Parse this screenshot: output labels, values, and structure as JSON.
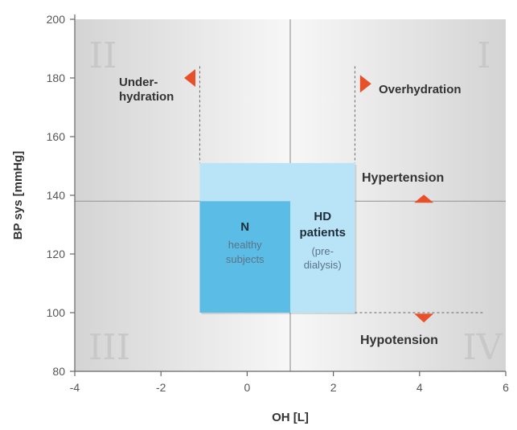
{
  "chart_data": {
    "type": "scatter",
    "xlabel": "OH [L]",
    "ylabel": "BP sys [mmHg]",
    "xlim": [
      -4,
      6
    ],
    "ylim": [
      80,
      200
    ],
    "x_ticks": [
      "-4",
      "-2",
      "0",
      "2",
      "4",
      "6"
    ],
    "y_ticks": [
      "80",
      "100",
      "120",
      "140",
      "160",
      "180",
      "200"
    ],
    "quadrant_dividers": {
      "x": 1,
      "y": 138
    },
    "quadrants": [
      {
        "id": "I",
        "label": "I"
      },
      {
        "id": "II",
        "label": "II"
      },
      {
        "id": "III",
        "label": "III"
      },
      {
        "id": "IV",
        "label": "IV"
      }
    ],
    "regions": [
      {
        "name": "N",
        "title": "N",
        "subtitle": [
          "healthy",
          "subjects"
        ],
        "x": [
          -1.1,
          1
        ],
        "y": [
          100,
          138
        ],
        "color": "#5bbce6"
      },
      {
        "name": "HD patients",
        "title": [
          "HD",
          "patients"
        ],
        "subtitle": [
          "(pre-",
          "dialysis)"
        ],
        "x": [
          -1.1,
          2.5
        ],
        "y": [
          100,
          151
        ],
        "color": "#b9e3f7"
      }
    ],
    "thresholds": {
      "underhydration_oh": -1.1,
      "overhydration_oh": 2.5,
      "hypertension_bp": 138,
      "hypotension_bp": 100
    },
    "annotations": {
      "underhydration": [
        "Under-",
        "hydration"
      ],
      "overhydration": "Overhydration",
      "hypertension": "Hypertension",
      "hypotension": "Hypotension"
    },
    "colors": {
      "arrow": "#e8502a",
      "panel_light": "#f4f4f4",
      "panel_dark": "#d6d6d6"
    }
  }
}
